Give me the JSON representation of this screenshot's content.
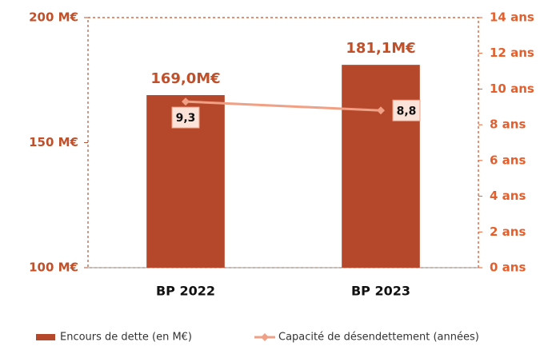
{
  "chart_data": {
    "type": "bar",
    "categories": [
      "BP 2022",
      "BP 2023"
    ],
    "series": [
      {
        "name": "Encours de dette (en M€)",
        "color": "#b5472a",
        "values": [
          169.0,
          181.1
        ],
        "value_labels": [
          "169,0M€",
          "181,1M€"
        ]
      },
      {
        "name": "Capacité de désendettement (années)",
        "color": "#f0a084",
        "axis": "y2",
        "type": "line",
        "values": [
          9.3,
          8.8
        ],
        "value_labels": [
          "9,3",
          "8,8"
        ]
      }
    ],
    "ylim": [
      100,
      200
    ],
    "yticks": [
      {
        "value": 100,
        "label": "100 M€"
      },
      {
        "value": 150,
        "label": "150 M€"
      },
      {
        "value": 200,
        "label": "200 M€"
      }
    ],
    "y2lim": [
      0,
      14
    ],
    "y2ticks": [
      {
        "value": 0,
        "label": "0 ans"
      },
      {
        "value": 2,
        "label": "2 ans"
      },
      {
        "value": 4,
        "label": "4 ans"
      },
      {
        "value": 6,
        "label": "6 ans"
      },
      {
        "value": 8,
        "label": "8 ans"
      },
      {
        "value": 10,
        "label": "10 ans"
      },
      {
        "value": 12,
        "label": "12 ans"
      },
      {
        "value": 14,
        "label": "14 ans"
      }
    ],
    "legend": "bottom"
  }
}
